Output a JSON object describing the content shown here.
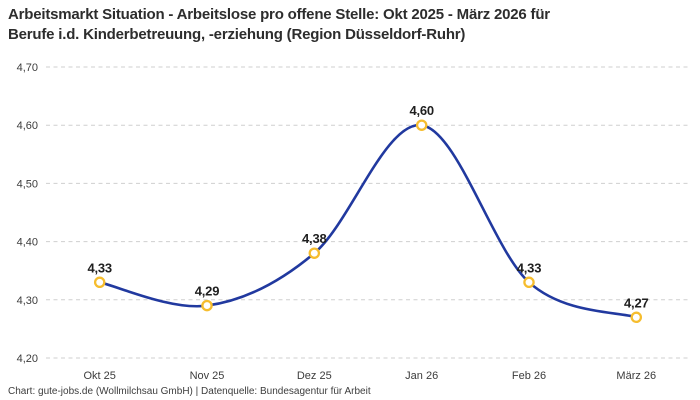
{
  "title_line1": "Arbeitsmarkt Situation - Arbeitslose pro offene Stelle: Okt 2025 - März 2026 für",
  "title_line2": "Berufe i.d. Kinderbetreuung, -erziehung (Region Düsseldorf-Ruhr)",
  "footer": "Chart: gute-jobs.de (Wollmilchsau GmbH) | Datenquelle: Bundesagentur für Arbeit",
  "colors": {
    "line": "#21399f",
    "marker_stroke": "#f6bd2e",
    "marker_fill": "#ffffff",
    "grid": "#cfcfcf",
    "axis_text": "#3c3c3c",
    "data_label": "#1f1f1f",
    "title_text": "#2d2d2d",
    "background": "#ffffff"
  },
  "chart_data": {
    "type": "line",
    "title": "Arbeitsmarkt Situation - Arbeitslose pro offene Stelle: Okt 2025 - März 2026 für Berufe i.d. Kinderbetreuung, -erziehung (Region Düsseldorf-Ruhr)",
    "categories": [
      "Okt 25",
      "Nov 25",
      "Dez 25",
      "Jan 26",
      "Feb 26",
      "März 26"
    ],
    "values": [
      4.33,
      4.29,
      4.38,
      4.6,
      4.33,
      4.27
    ],
    "point_labels": [
      "4,33",
      "4,29",
      "4,38",
      "4,60",
      "4,33",
      "4,27"
    ],
    "ylim": [
      4.2,
      4.7
    ],
    "ytick_values": [
      4.2,
      4.3,
      4.4,
      4.5,
      4.6,
      4.7
    ],
    "ytick_labels": [
      "4,20",
      "4,30",
      "4,40",
      "4,50",
      "4,60",
      "4,70"
    ],
    "xlabel": "",
    "ylabel": "",
    "legend": "none",
    "grid": "horizontal-dashed",
    "line_style": "smooth-spline",
    "marker_style": "open-circle"
  }
}
